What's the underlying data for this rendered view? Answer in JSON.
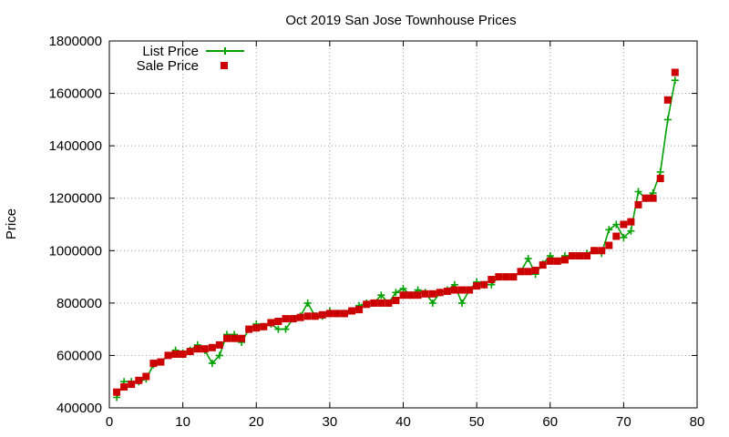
{
  "chart_data": {
    "type": "line",
    "title": "Oct 2019 San Jose Townhouse Prices",
    "xlabel": "",
    "ylabel": "Price",
    "xlim": [
      0,
      80
    ],
    "ylim": [
      400000,
      1800000
    ],
    "xticks": [
      0,
      10,
      20,
      30,
      40,
      50,
      60,
      70,
      80
    ],
    "yticks": [
      400000,
      600000,
      800000,
      1000000,
      1200000,
      1400000,
      1600000,
      1800000
    ],
    "grid": true,
    "legend_position": "top-left",
    "x": [
      1,
      2,
      3,
      4,
      5,
      6,
      7,
      8,
      9,
      10,
      11,
      12,
      13,
      14,
      15,
      16,
      17,
      18,
      19,
      20,
      21,
      22,
      23,
      24,
      25,
      26,
      27,
      28,
      29,
      30,
      31,
      32,
      33,
      34,
      35,
      36,
      37,
      38,
      39,
      40,
      41,
      42,
      43,
      44,
      45,
      46,
      47,
      48,
      49,
      50,
      51,
      52,
      53,
      54,
      55,
      56,
      57,
      58,
      59,
      60,
      61,
      62,
      63,
      64,
      65,
      66,
      67,
      68,
      69,
      70,
      71,
      72,
      73,
      74,
      75,
      76,
      77
    ],
    "series": [
      {
        "name": "List Price",
        "style": "linespoints",
        "color": "#00a000",
        "values": [
          440000,
          500000,
          500000,
          500000,
          510000,
          565000,
          575000,
          600000,
          620000,
          610000,
          620000,
          640000,
          620000,
          570000,
          600000,
          680000,
          680000,
          650000,
          700000,
          720000,
          710000,
          720000,
          700000,
          700000,
          740000,
          750000,
          800000,
          750000,
          750000,
          770000,
          760000,
          760000,
          770000,
          790000,
          800000,
          800000,
          830000,
          800000,
          840000,
          855000,
          830000,
          850000,
          840000,
          800000,
          840000,
          850000,
          870000,
          800000,
          850000,
          880000,
          870000,
          870000,
          900000,
          900000,
          900000,
          920000,
          970000,
          910000,
          950000,
          980000,
          960000,
          980000,
          980000,
          980000,
          990000,
          1000000,
          990000,
          1080000,
          1100000,
          1050000,
          1075000,
          1225000,
          1200000,
          1220000,
          1300000,
          1500000,
          1650000
        ]
      },
      {
        "name": "Sale Price",
        "style": "points",
        "color": "#cc0000",
        "values": [
          460000,
          480000,
          490000,
          505000,
          520000,
          570000,
          575000,
          600000,
          605000,
          605000,
          615000,
          625000,
          625000,
          630000,
          640000,
          665000,
          665000,
          665000,
          700000,
          705000,
          710000,
          725000,
          730000,
          740000,
          740000,
          745000,
          750000,
          750000,
          755000,
          760000,
          760000,
          760000,
          770000,
          775000,
          795000,
          800000,
          800000,
          800000,
          810000,
          830000,
          830000,
          830000,
          835000,
          835000,
          840000,
          845000,
          850000,
          850000,
          850000,
          865000,
          870000,
          890000,
          900000,
          900000,
          900000,
          920000,
          920000,
          925000,
          945000,
          960000,
          960000,
          965000,
          980000,
          980000,
          980000,
          1000000,
          1000000,
          1020000,
          1055000,
          1100000,
          1110000,
          1175000,
          1200000,
          1200000,
          1275000,
          1575000,
          1680000
        ]
      }
    ]
  }
}
